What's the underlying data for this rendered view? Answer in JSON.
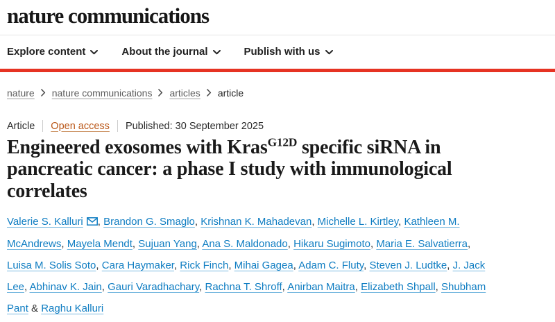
{
  "masthead": {
    "logo": "nature communications"
  },
  "nav": {
    "items": [
      {
        "label": "Explore content"
      },
      {
        "label": "About the journal"
      },
      {
        "label": "Publish with us"
      }
    ]
  },
  "breadcrumb": {
    "links": [
      "nature",
      "nature communications",
      "articles"
    ],
    "current": "article"
  },
  "article_meta": {
    "type_label": "Article",
    "access_label": "Open access",
    "published_label": "Published: 30 September 2025"
  },
  "title": {
    "pre": "Engineered exosomes with Kras",
    "sup": "G12D",
    "post": " specific siRNA in pancreatic cancer: a phase I study with immunological correlates"
  },
  "authors": {
    "corresponding_index": 0,
    "separator": ", ",
    "final_separator": " & ",
    "list": [
      "Valerie S. Kalluri",
      "Brandon G. Smaglo",
      "Krishnan K. Mahadevan",
      "Michelle L. Kirtley",
      "Kathleen M. McAndrews",
      "Mayela Mendt",
      "Sujuan Yang",
      "Ana S. Maldonado",
      "Hikaru Sugimoto",
      "Maria E. Salvatierra",
      "Luisa M. Solis Soto",
      "Cara Haymaker",
      "Rick Finch",
      "Mihai Gagea",
      "Adam C. Fluty",
      "Steven J. Ludtke",
      "J. Jack Lee",
      "Abhinav K. Jain",
      "Gauri Varadhachary",
      "Rachna T. Shroff",
      "Anirban Maitra",
      "Elizabeth Shpall",
      "Shubham Pant",
      "Raghu Kalluri"
    ]
  },
  "colors": {
    "accent_red": "#e63323",
    "link_blue": "#0f7dc2",
    "open_access_orange": "#ba5718",
    "text_dark": "#222222",
    "breadcrumb_link_gray": "#5c5c5c",
    "divider_gray": "#cccccc"
  }
}
